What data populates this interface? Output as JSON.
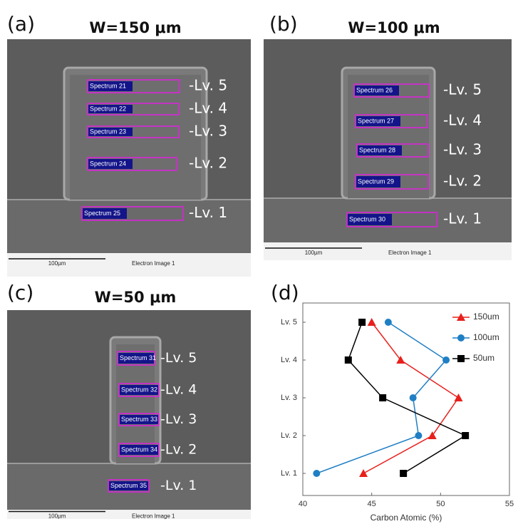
{
  "panels": [
    {
      "label": "(a)",
      "title": "W=150 μm",
      "scale_bar": "100µm",
      "image_caption": "Electron Image 1",
      "spectra": [
        {
          "name": "Spectrum 21",
          "level": "-Lv. 5"
        },
        {
          "name": "Spectrum 22",
          "level": "-Lv. 4"
        },
        {
          "name": "Spectrum 23",
          "level": "-Lv. 3"
        },
        {
          "name": "Spectrum 24",
          "level": "-Lv. 2"
        },
        {
          "name": "Spectrum 25",
          "level": "-Lv. 1"
        }
      ]
    },
    {
      "label": "(b)",
      "title": "W=100 μm",
      "scale_bar": "100µm",
      "image_caption": "Electron Image 1",
      "spectra": [
        {
          "name": "Spectrum 26",
          "level": "-Lv. 5"
        },
        {
          "name": "Spectrum 27",
          "level": "-Lv. 4"
        },
        {
          "name": "Spectrum 28",
          "level": "-Lv. 3"
        },
        {
          "name": "Spectrum 29",
          "level": "-Lv. 2"
        },
        {
          "name": "Spectrum 30",
          "level": "-Lv. 1"
        }
      ]
    },
    {
      "label": "(c)",
      "title": "W=50 μm",
      "scale_bar": "100µm",
      "image_caption": "Electron Image 1",
      "spectra": [
        {
          "name": "Spectrum 31",
          "level": "-Lv. 5"
        },
        {
          "name": "Spectrum 32",
          "level": "-Lv. 4"
        },
        {
          "name": "Spectrum 33",
          "level": "-Lv. 3"
        },
        {
          "name": "Spectrum 34",
          "level": "-Lv. 2"
        },
        {
          "name": "Spectrum 35",
          "level": "-Lv. 1"
        }
      ]
    }
  ],
  "chart_data": {
    "type": "line",
    "label": "(d)",
    "x_label": "Carbon Atomic (%)",
    "categories": [
      "Lv. 1",
      "Lv. 2",
      "Lv. 3",
      "Lv. 4",
      "Lv. 5"
    ],
    "xlim": [
      40,
      55
    ],
    "xticks": [
      40,
      45,
      50,
      55
    ],
    "legend": "upper right",
    "series": [
      {
        "name": "150um",
        "color": "#e8201c",
        "marker": "triangle",
        "values": [
          44.4,
          49.4,
          51.3,
          47.1,
          45.0
        ]
      },
      {
        "name": "100um",
        "color": "#1f7fc4",
        "marker": "circle",
        "values": [
          41.0,
          48.4,
          48.0,
          50.4,
          46.2
        ]
      },
      {
        "name": "50um",
        "color": "#000000",
        "marker": "square",
        "values": [
          47.3,
          51.8,
          45.8,
          43.3,
          44.3
        ]
      }
    ]
  }
}
